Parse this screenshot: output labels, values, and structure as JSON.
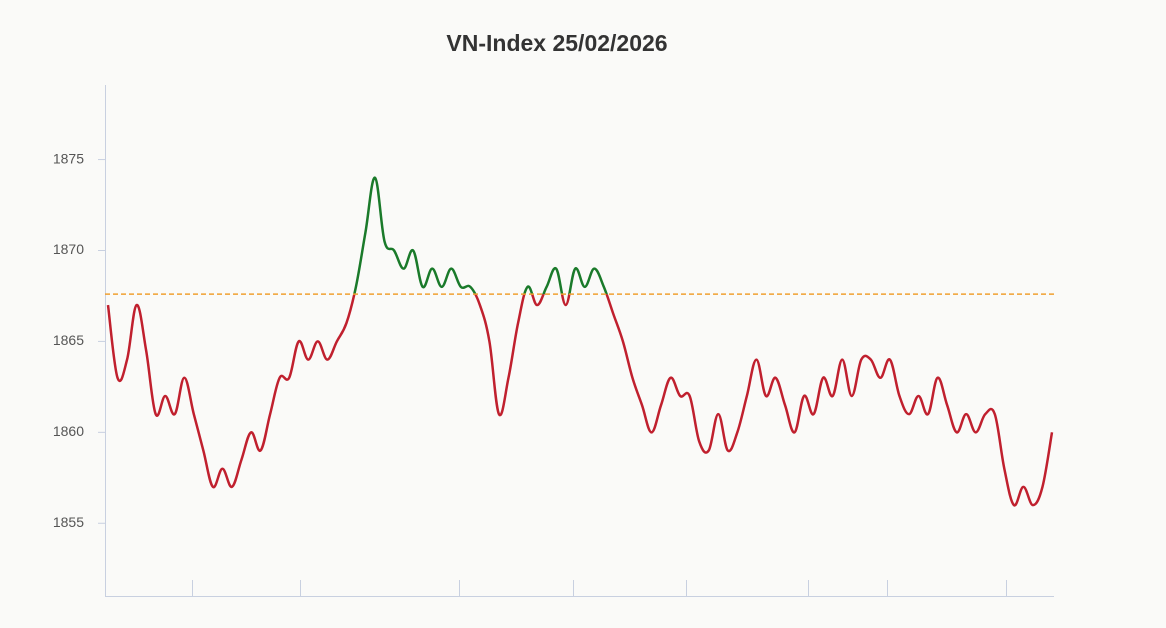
{
  "chart_data": {
    "type": "line",
    "title": "VN-Index 25/02/2026",
    "ylim": [
      1851,
      1879.1
    ],
    "yticks": [
      1855,
      1860,
      1865,
      1870,
      1875
    ],
    "reference_line": {
      "value": 1867.6,
      "color": "#f0a030"
    },
    "series": [
      {
        "color": "#c0202e",
        "above_color": "#1a7a2a",
        "values": [
          1867,
          1863,
          1864,
          1867,
          1864.5,
          1861,
          1862,
          1861,
          1863,
          1861,
          1859,
          1857,
          1858,
          1857,
          1858.5,
          1860,
          1859,
          1861,
          1863,
          1863,
          1865,
          1864,
          1865,
          1864,
          1865,
          1866,
          1868,
          1871,
          1874,
          1870.5,
          1870,
          1869,
          1870,
          1868,
          1869,
          1868,
          1869,
          1868,
          1868,
          1867,
          1865,
          1861,
          1863,
          1866,
          1868,
          1867,
          1868,
          1869,
          1867,
          1869,
          1868,
          1869,
          1868,
          1866.5,
          1865,
          1863,
          1861.5,
          1860,
          1861.5,
          1863,
          1862,
          1862,
          1859.5,
          1859,
          1861,
          1859,
          1860,
          1862,
          1864,
          1862,
          1863,
          1861.5,
          1860,
          1862,
          1861,
          1863,
          1862,
          1864,
          1862,
          1864,
          1864,
          1863,
          1864,
          1862,
          1861,
          1862,
          1861,
          1863,
          1861.5,
          1860,
          1861,
          1860,
          1861,
          1861,
          1858,
          1856,
          1857,
          1856,
          1857,
          1860
        ]
      }
    ]
  }
}
